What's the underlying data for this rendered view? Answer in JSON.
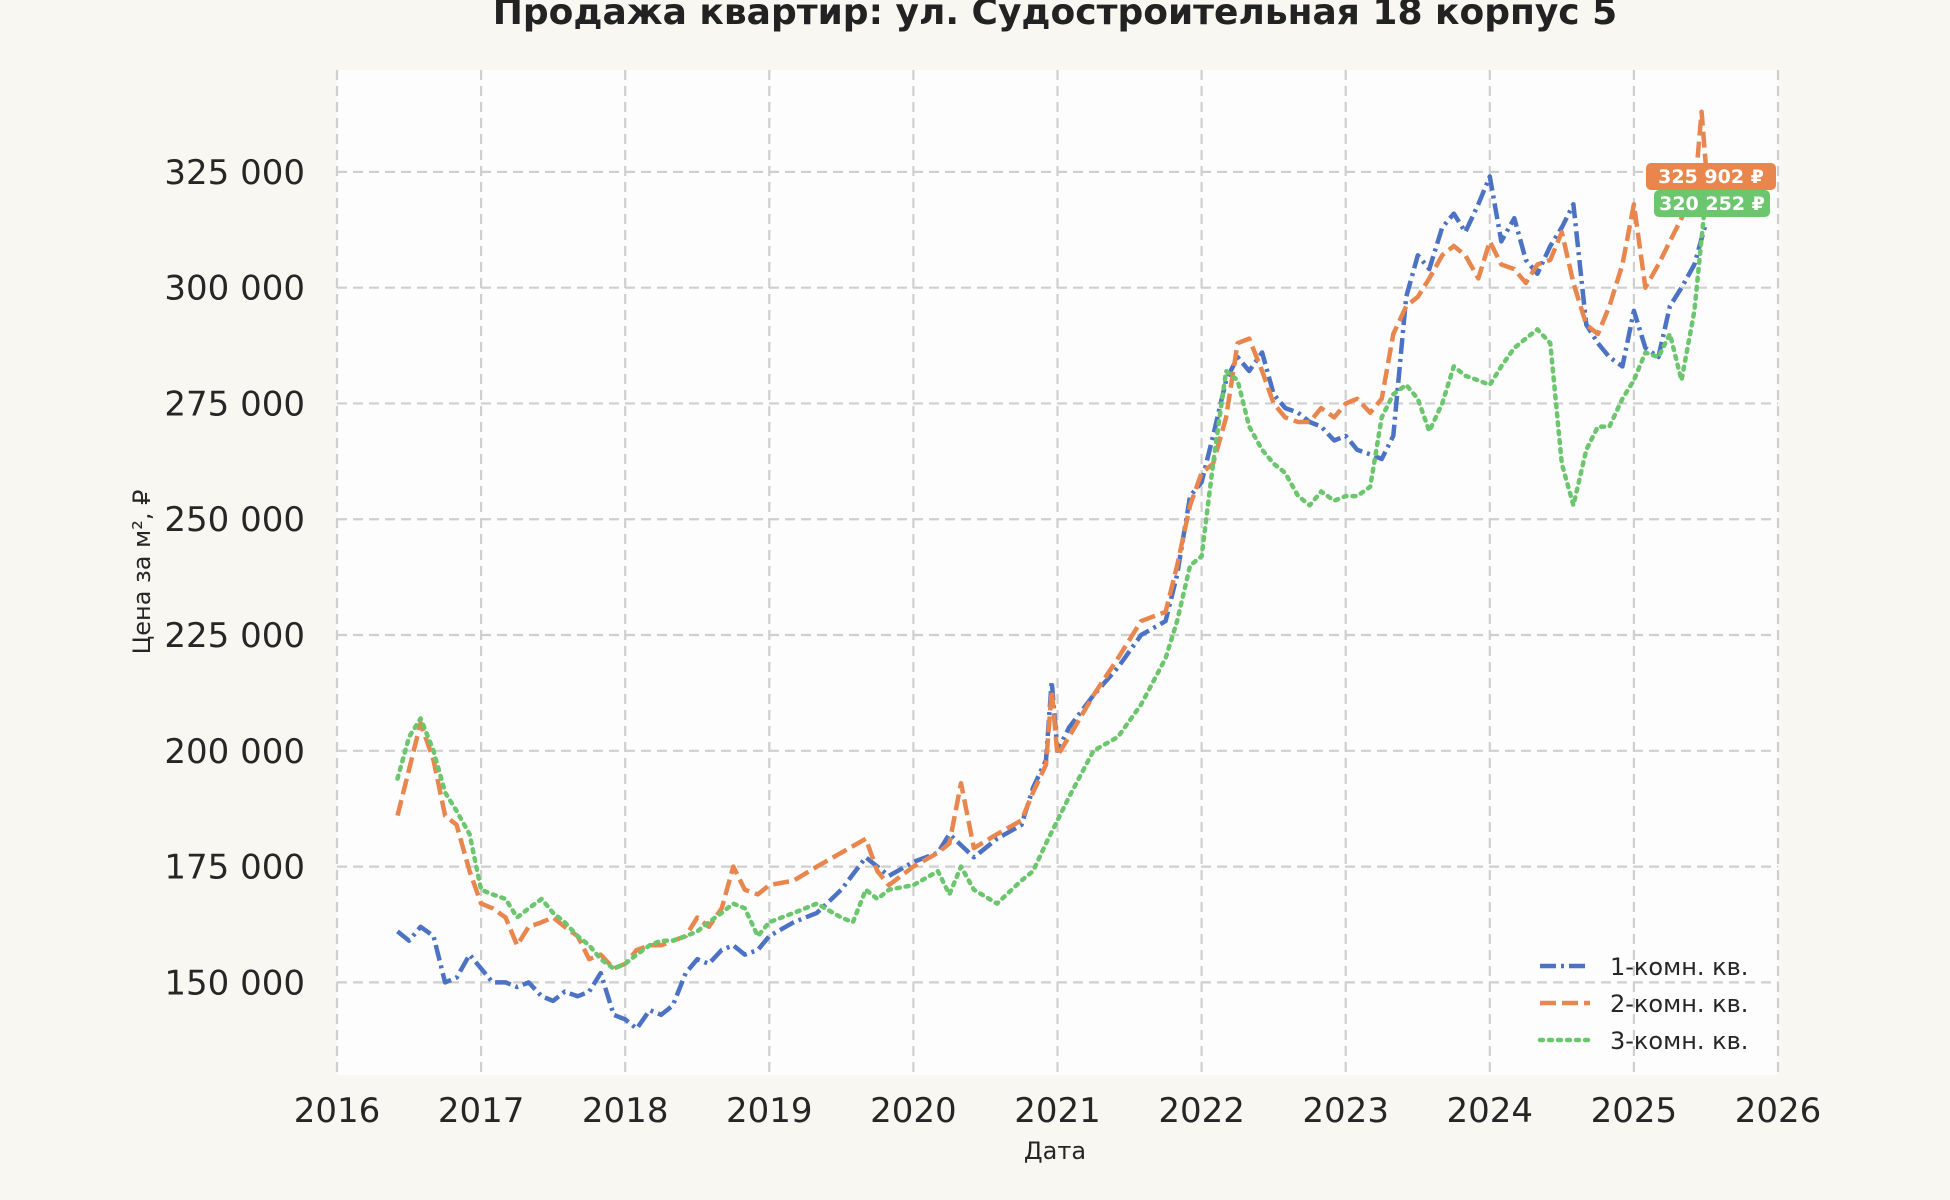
{
  "chart_data": {
    "type": "line",
    "title": "Продажа квартир: ул. Судостроительная 18 корпус 5",
    "xlabel": "Дата",
    "ylabel": "Цена за м², ₽",
    "xlim": [
      2016,
      2026
    ],
    "ylim": [
      130000,
      347000
    ],
    "x_ticks": [
      2016,
      2017,
      2018,
      2019,
      2020,
      2021,
      2022,
      2023,
      2024,
      2025,
      2026
    ],
    "y_ticks": [
      150000,
      175000,
      200000,
      225000,
      250000,
      275000,
      300000,
      325000
    ],
    "y_tick_labels": [
      "150 000",
      "175 000",
      "200 000",
      "225 000",
      "250 000",
      "275 000",
      "300 000",
      "325 000"
    ],
    "grid": true,
    "legend_position": "bottom-right",
    "series": [
      {
        "name": "1-комн. кв.",
        "color": "#4c72c4",
        "dash": "dashdot",
        "x": [
          2016.42,
          2016.5,
          2016.58,
          2016.67,
          2016.75,
          2016.83,
          2016.92,
          2017.0,
          2017.08,
          2017.17,
          2017.25,
          2017.33,
          2017.42,
          2017.5,
          2017.58,
          2017.67,
          2017.75,
          2017.83,
          2017.92,
          2018.0,
          2018.08,
          2018.17,
          2018.25,
          2018.33,
          2018.42,
          2018.5,
          2018.58,
          2018.67,
          2018.75,
          2018.83,
          2018.92,
          2019.0,
          2019.17,
          2019.33,
          2019.5,
          2019.67,
          2019.75,
          2019.83,
          2020.0,
          2020.17,
          2020.25,
          2020.42,
          2020.58,
          2020.75,
          2020.83,
          2020.92,
          2020.96,
          2021.0,
          2021.08,
          2021.25,
          2021.42,
          2021.58,
          2021.75,
          2021.83,
          2021.92,
          2022.0,
          2022.08,
          2022.17,
          2022.25,
          2022.33,
          2022.42,
          2022.5,
          2022.58,
          2022.67,
          2022.75,
          2022.83,
          2022.92,
          2023.0,
          2023.08,
          2023.17,
          2023.25,
          2023.33,
          2023.42,
          2023.5,
          2023.58,
          2023.67,
          2023.75,
          2023.83,
          2023.92,
          2024.0,
          2024.08,
          2024.17,
          2024.25,
          2024.33,
          2024.42,
          2024.5,
          2024.58,
          2024.67,
          2024.75,
          2024.83,
          2024.92,
          2025.0,
          2025.08,
          2025.17,
          2025.25,
          2025.33,
          2025.42,
          2025.5
        ],
        "y": [
          161000,
          159000,
          162000,
          160000,
          150000,
          151000,
          156000,
          153000,
          150000,
          150000,
          149000,
          150000,
          147000,
          146000,
          148000,
          147000,
          148000,
          152000,
          143000,
          142000,
          140000,
          144000,
          143000,
          145000,
          152000,
          155000,
          154000,
          157000,
          158000,
          156000,
          157000,
          160000,
          163000,
          165000,
          170000,
          177000,
          175000,
          173000,
          176000,
          178000,
          182000,
          177000,
          181000,
          184000,
          192000,
          198000,
          215000,
          200000,
          205000,
          212000,
          218000,
          225000,
          228000,
          238000,
          255000,
          258000,
          268000,
          280000,
          285000,
          282000,
          286000,
          277000,
          274000,
          273000,
          271000,
          270000,
          267000,
          268000,
          265000,
          264000,
          263000,
          268000,
          298000,
          307000,
          304000,
          313000,
          316000,
          312000,
          318000,
          324000,
          310000,
          315000,
          306000,
          303000,
          309000,
          313000,
          318000,
          292000,
          288000,
          285000,
          283000,
          295000,
          287000,
          285000,
          296000,
          300000,
          305000,
          314000
        ]
      },
      {
        "name": "2-комн. кв.",
        "color": "#e8864e",
        "dash": "dashed",
        "badge": "325 902 ₽",
        "x": [
          2016.42,
          2016.5,
          2016.58,
          2016.67,
          2016.75,
          2016.83,
          2016.92,
          2017.0,
          2017.08,
          2017.17,
          2017.25,
          2017.33,
          2017.42,
          2017.5,
          2017.58,
          2017.67,
          2017.75,
          2017.83,
          2017.92,
          2018.0,
          2018.08,
          2018.17,
          2018.25,
          2018.33,
          2018.42,
          2018.5,
          2018.58,
          2018.67,
          2018.75,
          2018.83,
          2018.92,
          2019.0,
          2019.17,
          2019.33,
          2019.5,
          2019.67,
          2019.75,
          2019.83,
          2020.0,
          2020.17,
          2020.25,
          2020.33,
          2020.42,
          2020.58,
          2020.75,
          2020.83,
          2020.92,
          2020.96,
          2021.0,
          2021.08,
          2021.25,
          2021.42,
          2021.58,
          2021.75,
          2021.83,
          2021.92,
          2022.0,
          2022.08,
          2022.17,
          2022.25,
          2022.33,
          2022.42,
          2022.5,
          2022.58,
          2022.67,
          2022.75,
          2022.83,
          2022.92,
          2023.0,
          2023.08,
          2023.17,
          2023.25,
          2023.33,
          2023.42,
          2023.5,
          2023.58,
          2023.67,
          2023.75,
          2023.83,
          2023.92,
          2024.0,
          2024.08,
          2024.17,
          2024.25,
          2024.33,
          2024.42,
          2024.5,
          2024.58,
          2024.67,
          2024.75,
          2024.83,
          2024.92,
          2025.0,
          2025.08,
          2025.17,
          2025.25,
          2025.33,
          2025.42,
          2025.47,
          2025.5
        ],
        "y": [
          186000,
          196000,
          206000,
          198000,
          186000,
          184000,
          174000,
          167000,
          166000,
          164000,
          158000,
          162000,
          163000,
          164000,
          162000,
          160000,
          155000,
          156000,
          153000,
          154000,
          157000,
          158000,
          158000,
          159000,
          160000,
          164000,
          162000,
          166000,
          175000,
          170000,
          169000,
          171000,
          172000,
          175000,
          178000,
          181000,
          174000,
          171000,
          175000,
          178000,
          180000,
          193000,
          179000,
          182000,
          185000,
          191000,
          197000,
          213000,
          199000,
          203000,
          212000,
          220000,
          228000,
          230000,
          240000,
          253000,
          260000,
          262000,
          272000,
          288000,
          289000,
          282000,
          275000,
          272000,
          271000,
          271000,
          274000,
          272000,
          275000,
          276000,
          273000,
          276000,
          290000,
          296000,
          298000,
          302000,
          307000,
          309000,
          307000,
          302000,
          310000,
          305000,
          304000,
          301000,
          305000,
          306000,
          312000,
          301000,
          292000,
          290000,
          296000,
          305000,
          318000,
          300000,
          305000,
          310000,
          315000,
          320000,
          338000,
          325902
        ]
      },
      {
        "name": "3-комн. кв.",
        "color": "#6cc66e",
        "dash": "dotted",
        "badge": "320 252 ₽",
        "x": [
          2016.42,
          2016.5,
          2016.58,
          2016.67,
          2016.75,
          2016.83,
          2016.92,
          2017.0,
          2017.08,
          2017.17,
          2017.25,
          2017.33,
          2017.42,
          2017.5,
          2017.58,
          2017.67,
          2017.75,
          2017.83,
          2017.92,
          2018.0,
          2018.08,
          2018.17,
          2018.25,
          2018.33,
          2018.42,
          2018.5,
          2018.58,
          2018.67,
          2018.75,
          2018.83,
          2018.92,
          2019.0,
          2019.17,
          2019.33,
          2019.5,
          2019.58,
          2019.67,
          2019.75,
          2019.83,
          2020.0,
          2020.17,
          2020.25,
          2020.33,
          2020.42,
          2020.58,
          2020.75,
          2020.83,
          2020.92,
          2021.0,
          2021.08,
          2021.25,
          2021.42,
          2021.58,
          2021.75,
          2021.83,
          2021.92,
          2022.0,
          2022.08,
          2022.17,
          2022.25,
          2022.33,
          2022.42,
          2022.5,
          2022.58,
          2022.67,
          2022.75,
          2022.83,
          2022.92,
          2023.0,
          2023.08,
          2023.17,
          2023.25,
          2023.33,
          2023.42,
          2023.5,
          2023.58,
          2023.67,
          2023.75,
          2023.83,
          2023.92,
          2024.0,
          2024.08,
          2024.17,
          2024.25,
          2024.33,
          2024.42,
          2024.5,
          2024.58,
          2024.67,
          2024.75,
          2024.83,
          2024.92,
          2025.0,
          2025.08,
          2025.17,
          2025.25,
          2025.33,
          2025.42,
          2025.5
        ],
        "y": [
          194000,
          203000,
          207000,
          200000,
          191000,
          187000,
          182000,
          170000,
          169000,
          168000,
          164000,
          166000,
          168000,
          165000,
          163000,
          160000,
          158000,
          155000,
          153000,
          154000,
          156000,
          158000,
          159000,
          159000,
          160000,
          161000,
          163000,
          165000,
          167000,
          166000,
          160000,
          163000,
          165000,
          167000,
          164000,
          163000,
          170000,
          168000,
          170000,
          171000,
          174000,
          169000,
          175000,
          170000,
          167000,
          172000,
          174000,
          180000,
          185000,
          190000,
          200000,
          203000,
          210000,
          220000,
          228000,
          240000,
          242000,
          262000,
          282000,
          280000,
          270000,
          265000,
          262000,
          260000,
          255000,
          253000,
          256000,
          254000,
          255000,
          255000,
          257000,
          272000,
          277000,
          279000,
          276000,
          269000,
          275000,
          283000,
          281000,
          280000,
          279000,
          283000,
          287000,
          289000,
          291000,
          288000,
          262000,
          253000,
          265000,
          270000,
          270000,
          276000,
          280000,
          286000,
          285000,
          290000,
          280000,
          295000,
          320252
        ]
      }
    ]
  }
}
